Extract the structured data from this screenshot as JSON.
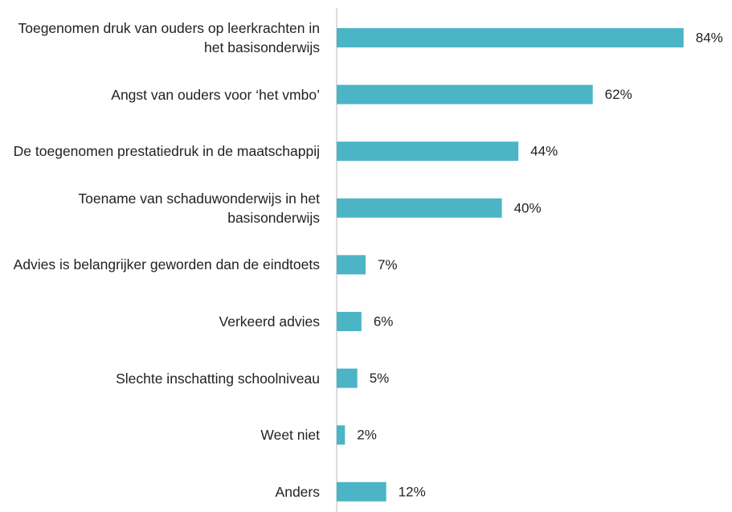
{
  "chart_data": {
    "type": "barh",
    "categories": [
      "Toegenomen druk van ouders op leerkrachten in het basisonderwijs",
      "Angst van ouders voor ‘het vmbo’",
      "De toegenomen prestatiedruk in de maatschappij",
      "Toename van schaduwonderwijs in het basisonderwijs",
      "Advies is belangrijker geworden dan de eindtoets",
      "Verkeerd advies",
      "Slechte inschatting schoolniveau",
      "Weet niet",
      "Anders"
    ],
    "values": [
      84,
      62,
      44,
      40,
      7,
      6,
      5,
      2,
      12
    ],
    "value_labels": [
      "84%",
      "62%",
      "44%",
      "40%",
      "7%",
      "6%",
      "5%",
      "2%",
      "12%"
    ],
    "color": "#4bb5c5"
  }
}
